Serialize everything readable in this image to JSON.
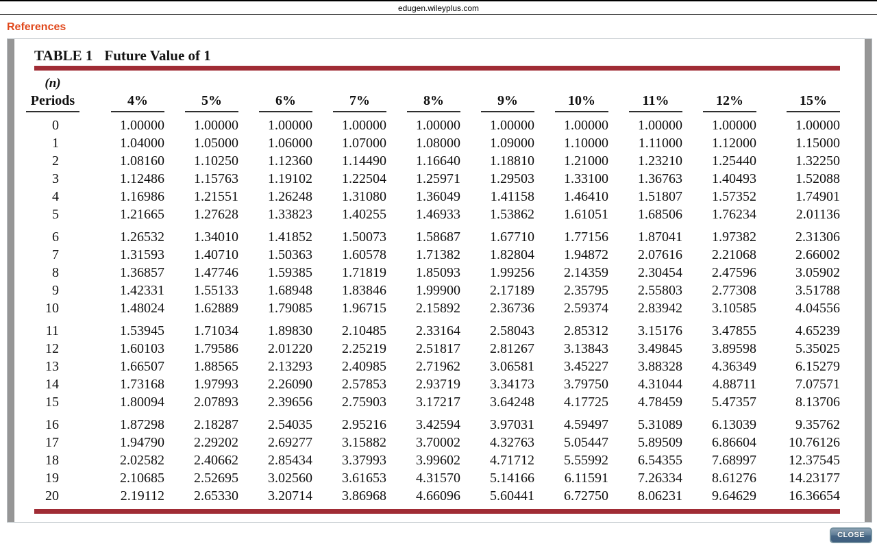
{
  "browser": {
    "address": "edugen.wileyplus.com"
  },
  "references_label": "References",
  "close_button_label": "CLOSE",
  "colors": {
    "accent_red": "#a02c35",
    "references_orange": "#e0481c"
  },
  "table": {
    "title_prefix": "TABLE 1",
    "title": "Future Value of 1",
    "col0_header_top": "(n)",
    "col0_header": "Periods",
    "rate_headers": [
      "4%",
      "5%",
      "6%",
      "7%",
      "8%",
      "9%",
      "10%",
      "11%",
      "12%",
      "15%"
    ],
    "row_groups": [
      {
        "rows": [
          {
            "period": "0",
            "values": [
              "1.00000",
              "1.00000",
              "1.00000",
              "1.00000",
              "1.00000",
              "1.00000",
              "1.00000",
              "1.00000",
              "1.00000",
              "1.00000"
            ]
          },
          {
            "period": "1",
            "values": [
              "1.04000",
              "1.05000",
              "1.06000",
              "1.07000",
              "1.08000",
              "1.09000",
              "1.10000",
              "1.11000",
              "1.12000",
              "1.15000"
            ]
          },
          {
            "period": "2",
            "values": [
              "1.08160",
              "1.10250",
              "1.12360",
              "1.14490",
              "1.16640",
              "1.18810",
              "1.21000",
              "1.23210",
              "1.25440",
              "1.32250"
            ]
          },
          {
            "period": "3",
            "values": [
              "1.12486",
              "1.15763",
              "1.19102",
              "1.22504",
              "1.25971",
              "1.29503",
              "1.33100",
              "1.36763",
              "1.40493",
              "1.52088"
            ]
          },
          {
            "period": "4",
            "values": [
              "1.16986",
              "1.21551",
              "1.26248",
              "1.31080",
              "1.36049",
              "1.41158",
              "1.46410",
              "1.51807",
              "1.57352",
              "1.74901"
            ]
          },
          {
            "period": "5",
            "values": [
              "1.21665",
              "1.27628",
              "1.33823",
              "1.40255",
              "1.46933",
              "1.53862",
              "1.61051",
              "1.68506",
              "1.76234",
              "2.01136"
            ]
          }
        ]
      },
      {
        "rows": [
          {
            "period": "6",
            "values": [
              "1.26532",
              "1.34010",
              "1.41852",
              "1.50073",
              "1.58687",
              "1.67710",
              "1.77156",
              "1.87041",
              "1.97382",
              "2.31306"
            ]
          },
          {
            "period": "7",
            "values": [
              "1.31593",
              "1.40710",
              "1.50363",
              "1.60578",
              "1.71382",
              "1.82804",
              "1.94872",
              "2.07616",
              "2.21068",
              "2.66002"
            ]
          },
          {
            "period": "8",
            "values": [
              "1.36857",
              "1.47746",
              "1.59385",
              "1.71819",
              "1.85093",
              "1.99256",
              "2.14359",
              "2.30454",
              "2.47596",
              "3.05902"
            ]
          },
          {
            "period": "9",
            "values": [
              "1.42331",
              "1.55133",
              "1.68948",
              "1.83846",
              "1.99900",
              "2.17189",
              "2.35795",
              "2.55803",
              "2.77308",
              "3.51788"
            ]
          },
          {
            "period": "10",
            "values": [
              "1.48024",
              "1.62889",
              "1.79085",
              "1.96715",
              "2.15892",
              "2.36736",
              "2.59374",
              "2.83942",
              "3.10585",
              "4.04556"
            ]
          }
        ]
      },
      {
        "rows": [
          {
            "period": "11",
            "values": [
              "1.53945",
              "1.71034",
              "1.89830",
              "2.10485",
              "2.33164",
              "2.58043",
              "2.85312",
              "3.15176",
              "3.47855",
              "4.65239"
            ]
          },
          {
            "period": "12",
            "values": [
              "1.60103",
              "1.79586",
              "2.01220",
              "2.25219",
              "2.51817",
              "2.81267",
              "3.13843",
              "3.49845",
              "3.89598",
              "5.35025"
            ]
          },
          {
            "period": "13",
            "values": [
              "1.66507",
              "1.88565",
              "2.13293",
              "2.40985",
              "2.71962",
              "3.06581",
              "3.45227",
              "3.88328",
              "4.36349",
              "6.15279"
            ]
          },
          {
            "period": "14",
            "values": [
              "1.73168",
              "1.97993",
              "2.26090",
              "2.57853",
              "2.93719",
              "3.34173",
              "3.79750",
              "4.31044",
              "4.88711",
              "7.07571"
            ]
          },
          {
            "period": "15",
            "values": [
              "1.80094",
              "2.07893",
              "2.39656",
              "2.75903",
              "3.17217",
              "3.64248",
              "4.17725",
              "4.78459",
              "5.47357",
              "8.13706"
            ]
          }
        ]
      },
      {
        "rows": [
          {
            "period": "16",
            "values": [
              "1.87298",
              "2.18287",
              "2.54035",
              "2.95216",
              "3.42594",
              "3.97031",
              "4.59497",
              "5.31089",
              "6.13039",
              "9.35762"
            ]
          },
          {
            "period": "17",
            "values": [
              "1.94790",
              "2.29202",
              "2.69277",
              "3.15882",
              "3.70002",
              "4.32763",
              "5.05447",
              "5.89509",
              "6.86604",
              "10.76126"
            ]
          },
          {
            "period": "18",
            "values": [
              "2.02582",
              "2.40662",
              "2.85434",
              "3.37993",
              "3.99602",
              "4.71712",
              "5.55992",
              "6.54355",
              "7.68997",
              "12.37545"
            ]
          },
          {
            "period": "19",
            "values": [
              "2.10685",
              "2.52695",
              "3.02560",
              "3.61653",
              "4.31570",
              "5.14166",
              "6.11591",
              "7.26334",
              "8.61276",
              "14.23177"
            ]
          },
          {
            "period": "20",
            "values": [
              "2.19112",
              "2.65330",
              "3.20714",
              "3.86968",
              "4.66096",
              "5.60441",
              "6.72750",
              "8.06231",
              "9.64629",
              "16.36654"
            ]
          }
        ]
      }
    ]
  }
}
